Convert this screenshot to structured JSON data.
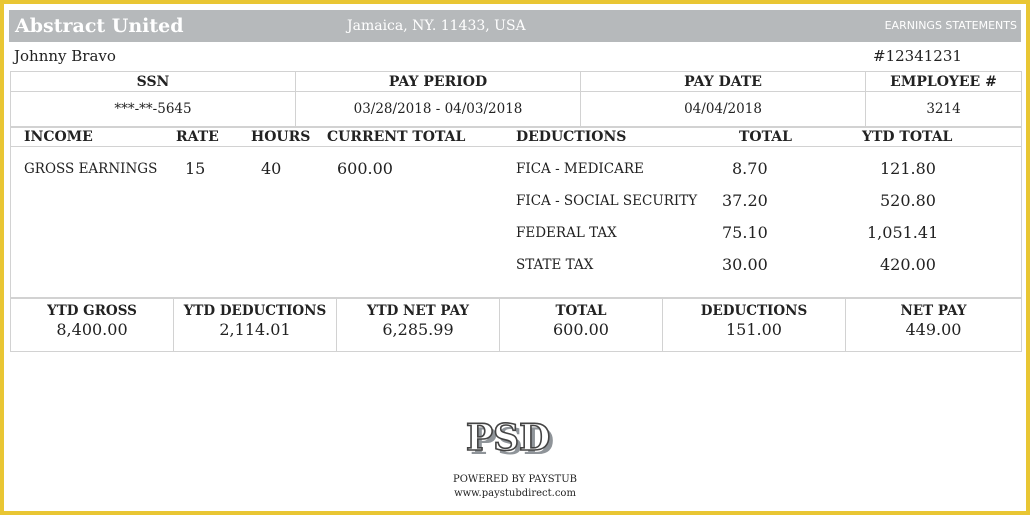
{
  "header": {
    "company": "Abstract United",
    "address": "Jamaica, NY. 11433, USA",
    "statement_label": "EARNINGS STATEMENTS"
  },
  "employee": {
    "name": "Johnny Bravo",
    "stub_number": "#12341231"
  },
  "info": {
    "ssn_label": "SSN",
    "ssn_value": "***-**-5645",
    "pay_period_label": "PAY PERIOD",
    "pay_period_value": "03/28/2018 - 04/03/2018",
    "pay_date_label": "PAY DATE",
    "pay_date_value": "04/04/2018",
    "employee_no_label": "EMPLOYEE #",
    "employee_no_value": "3214"
  },
  "income": {
    "headers": {
      "income": "INCOME",
      "rate": "RATE",
      "hours": "HOURS",
      "current_total": "CURRENT TOTAL"
    },
    "rows": [
      {
        "label": "GROSS EARNINGS",
        "rate": "15",
        "hours": "40",
        "current_total": "600.00"
      }
    ]
  },
  "deductions": {
    "headers": {
      "deductions": "DEDUCTIONS",
      "total": "TOTAL",
      "ytd_total": "YTD TOTAL"
    },
    "rows": [
      {
        "label": "FICA - MEDICARE",
        "total": "8.70",
        "ytd": "121.80"
      },
      {
        "label": "FICA - SOCIAL SECURITY",
        "total": "37.20",
        "ytd": "520.80"
      },
      {
        "label": "FEDERAL TAX",
        "total": "75.10",
        "ytd": "1,051.41"
      },
      {
        "label": "STATE TAX",
        "total": "30.00",
        "ytd": "420.00"
      }
    ]
  },
  "summary": [
    {
      "label": "YTD GROSS",
      "value": "8,400.00"
    },
    {
      "label": "YTD DEDUCTIONS",
      "value": "2,114.01"
    },
    {
      "label": "YTD NET PAY",
      "value": "6,285.99"
    },
    {
      "label": "TOTAL",
      "value": "600.00"
    },
    {
      "label": "DEDUCTIONS",
      "value": "151.00"
    },
    {
      "label": "NET PAY",
      "value": "449.00"
    }
  ],
  "footer": {
    "logo_text": "PSD",
    "powered": "POWERED BY PAYSTUB",
    "website": "www.paystubdirect.com"
  },
  "colors": {
    "frame": "#e9c633",
    "header_bg": "#b6b9bb",
    "border": "#d2d2d2"
  }
}
